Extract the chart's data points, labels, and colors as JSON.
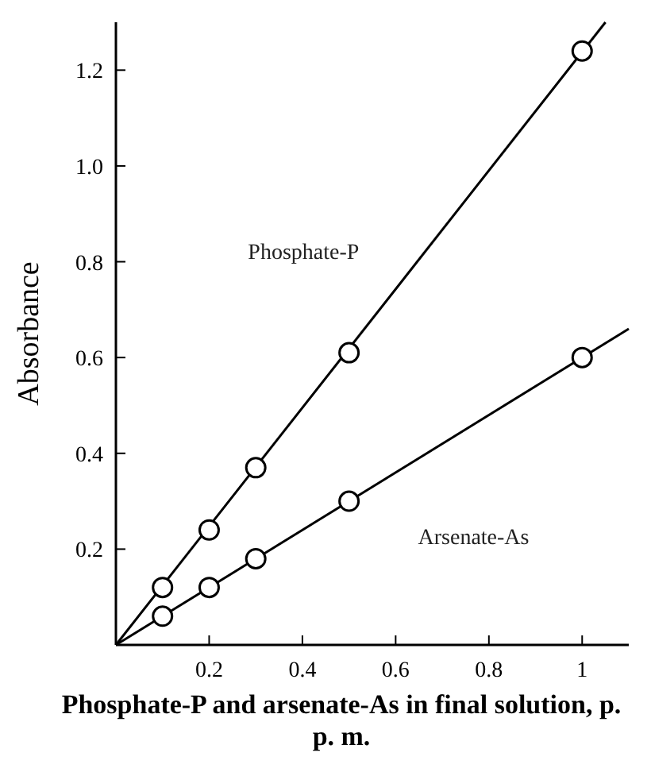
{
  "chart_data": {
    "type": "line",
    "xlabel": "Phosphate-P and arsenate-As in final solution, p. p. m.",
    "ylabel": "Absorbance",
    "xlim": [
      0,
      1.1
    ],
    "ylim": [
      0,
      1.3
    ],
    "xticks": [
      0.2,
      0.4,
      0.6,
      0.8,
      1
    ],
    "yticks": [
      0.2,
      0.4,
      0.6,
      0.8,
      {
        "value": 1,
        "label": "1.0"
      },
      1.2
    ],
    "grid": false,
    "series": [
      {
        "name": "Phosphate-P",
        "color": "#000000",
        "x": [
          0,
          1.05
        ],
        "values": [
          0,
          1.3
        ],
        "marker": "none"
      },
      {
        "name": "Arsenate-As",
        "color": "#000000",
        "x": [
          0,
          1.1
        ],
        "values": [
          0,
          0.66
        ],
        "marker": "none"
      },
      {
        "type": "scatter",
        "color": "#000000",
        "x": [
          0.1,
          0.2,
          0.3,
          0.5,
          1
        ],
        "values": [
          0.12,
          0.24,
          0.37,
          0.61,
          1.24
        ],
        "marker": "circle"
      },
      {
        "type": "scatter",
        "color": "#000000",
        "x": [
          0.1,
          0.2,
          0.3,
          0.5,
          1
        ],
        "values": [
          0.06,
          0.12,
          0.18,
          0.3,
          0.6
        ],
        "marker": "circle"
      }
    ]
  }
}
